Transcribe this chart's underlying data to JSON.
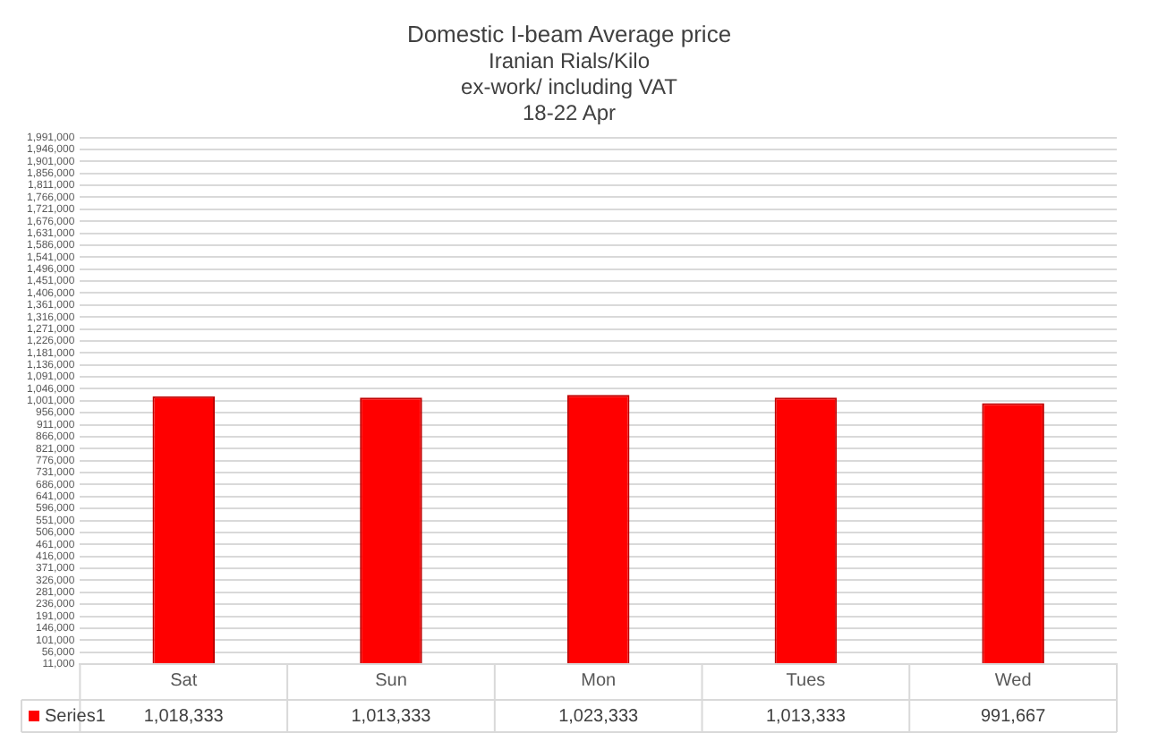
{
  "chart_data": {
    "type": "bar",
    "title": "Domestic I-beam Average price",
    "subtitle": "Iranian Rials/Kilo\nex-work/ including VAT\n18-22 Apr",
    "categories": [
      "Sat",
      "Sun",
      "Mon",
      "Tues",
      "Wed"
    ],
    "series": [
      {
        "name": "Series1",
        "color": "#ff0000",
        "values": [
          1018333,
          1013333,
          1023333,
          1013333,
          991667
        ],
        "value_labels": [
          "1,018,333",
          "1,013,333",
          "1,023,333",
          "1,013,333",
          "991,667"
        ]
      }
    ],
    "ylim": [
      11000,
      1991000
    ],
    "yticks": [
      {
        "value": 11000,
        "label": "11,000"
      },
      {
        "value": 56000,
        "label": "56,000"
      },
      {
        "value": 101000,
        "label": "101,000"
      },
      {
        "value": 146000,
        "label": "146,000"
      },
      {
        "value": 191000,
        "label": "191,000"
      },
      {
        "value": 236000,
        "label": "236,000"
      },
      {
        "value": 281000,
        "label": "281,000"
      },
      {
        "value": 326000,
        "label": "326,000"
      },
      {
        "value": 371000,
        "label": "371,000"
      },
      {
        "value": 416000,
        "label": "416,000"
      },
      {
        "value": 461000,
        "label": "461,000"
      },
      {
        "value": 506000,
        "label": "506,000"
      },
      {
        "value": 551000,
        "label": "551,000"
      },
      {
        "value": 596000,
        "label": "596,000"
      },
      {
        "value": 641000,
        "label": "641,000"
      },
      {
        "value": 686000,
        "label": "686,000"
      },
      {
        "value": 731000,
        "label": "731,000"
      },
      {
        "value": 776000,
        "label": "776,000"
      },
      {
        "value": 821000,
        "label": "821,000"
      },
      {
        "value": 866000,
        "label": "866,000"
      },
      {
        "value": 911000,
        "label": "911,000"
      },
      {
        "value": 956000,
        "label": "956,000"
      },
      {
        "value": 1001000,
        "label": "1,001,000"
      },
      {
        "value": 1046000,
        "label": "1,046,000"
      },
      {
        "value": 1091000,
        "label": "1,091,000"
      },
      {
        "value": 1136000,
        "label": "1,136,000"
      },
      {
        "value": 1181000,
        "label": "1,181,000"
      },
      {
        "value": 1226000,
        "label": "1,226,000"
      },
      {
        "value": 1271000,
        "label": "1,271,000"
      },
      {
        "value": 1316000,
        "label": "1,316,000"
      },
      {
        "value": 1361000,
        "label": "1,361,000"
      },
      {
        "value": 1406000,
        "label": "1,406,000"
      },
      {
        "value": 1451000,
        "label": "1,451,000"
      },
      {
        "value": 1496000,
        "label": "1,496,000"
      },
      {
        "value": 1541000,
        "label": "1,541,000"
      },
      {
        "value": 1586000,
        "label": "1,586,000"
      },
      {
        "value": 1631000,
        "label": "1,631,000"
      },
      {
        "value": 1676000,
        "label": "1,676,000"
      },
      {
        "value": 1721000,
        "label": "1,721,000"
      },
      {
        "value": 1766000,
        "label": "1,766,000"
      },
      {
        "value": 1811000,
        "label": "1,811,000"
      },
      {
        "value": 1856000,
        "label": "1,856,000"
      },
      {
        "value": 1901000,
        "label": "1,901,000"
      },
      {
        "value": 1946000,
        "label": "1,946,000"
      },
      {
        "value": 1991000,
        "label": "1,991,000"
      }
    ],
    "grid": "y",
    "legend": "bottom"
  }
}
